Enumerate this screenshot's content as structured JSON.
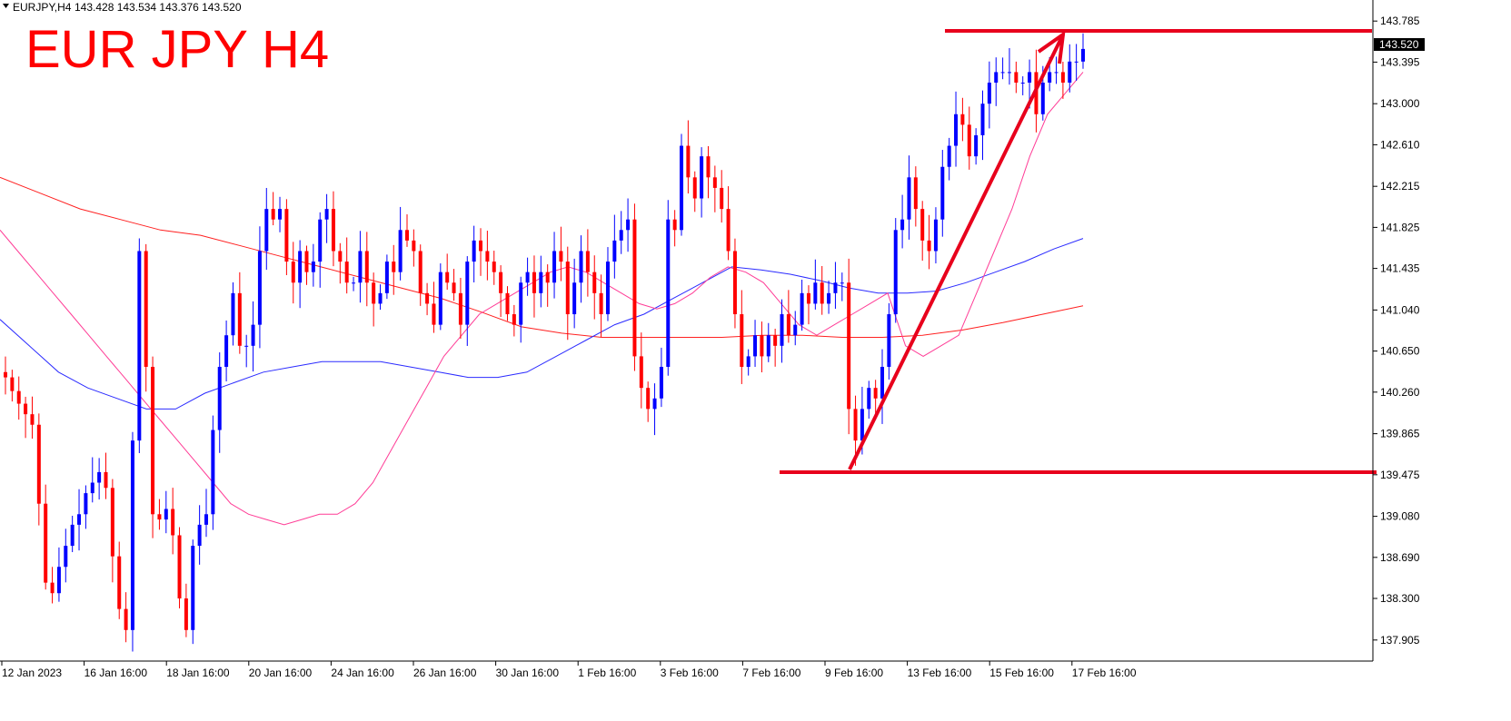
{
  "header": {
    "symbol": "EURJPY,H4",
    "ohlc": "143.428 143.534 143.376 143.520"
  },
  "chart_data": {
    "type": "candlestick",
    "title": "EUR JPY H4",
    "ylim": [
      137.705,
      143.985
    ],
    "y_ticks": [
      "143.785",
      "143.395",
      "143.000",
      "142.610",
      "142.215",
      "141.825",
      "141.435",
      "141.040",
      "140.650",
      "140.260",
      "139.865",
      "139.475",
      "139.080",
      "138.690",
      "138.300",
      "137.905"
    ],
    "x_labels": [
      "12 Jan 2023",
      "16 Jan 16:00",
      "18 Jan 16:00",
      "20 Jan 16:00",
      "24 Jan 16:00",
      "26 Jan 16:00",
      "30 Jan 16:00",
      "1 Feb 16:00",
      "3 Feb 16:00",
      "7 Feb 16:00",
      "9 Feb 16:00",
      "13 Feb 16:00",
      "15 Feb 16:00",
      "17 Feb 16:00"
    ],
    "last_price": "143.520",
    "colors": {
      "up": "#0000ff",
      "down": "#ff0000",
      "axis": "#000000",
      "annotation": "#e8001c",
      "ma_fast": "#ff3c96",
      "ma_mid": "#2b2bff",
      "ma_slow": "#ff2020"
    },
    "closes": [
      140.4,
      140.27,
      140.15,
      140.05,
      139.95,
      139.2,
      138.45,
      138.35,
      138.6,
      138.8,
      139.0,
      139.1,
      139.3,
      139.4,
      139.5,
      139.35,
      138.7,
      138.2,
      138.0,
      139.8,
      141.6,
      140.5,
      139.1,
      139.05,
      139.15,
      138.9,
      138.3,
      138.0,
      138.8,
      139.0,
      139.1,
      139.9,
      140.5,
      140.8,
      141.2,
      140.7,
      140.7,
      140.9,
      141.6,
      142.0,
      141.9,
      142.0,
      141.5,
      141.3,
      141.6,
      141.4,
      141.5,
      141.9,
      142.0,
      141.6,
      141.5,
      141.3,
      141.3,
      141.6,
      141.3,
      141.1,
      141.2,
      141.5,
      141.4,
      141.8,
      141.7,
      141.6,
      141.2,
      141.1,
      140.9,
      141.4,
      141.3,
      141.2,
      140.9,
      141.5,
      141.7,
      141.6,
      141.5,
      141.4,
      141.2,
      141.0,
      140.9,
      141.3,
      141.4,
      141.2,
      141.4,
      141.3,
      141.6,
      141.5,
      141.0,
      141.3,
      141.6,
      141.4,
      141.2,
      141.0,
      141.5,
      141.7,
      141.8,
      141.9,
      140.6,
      140.3,
      140.1,
      140.2,
      140.5,
      141.9,
      141.8,
      142.6,
      142.3,
      142.1,
      142.5,
      142.3,
      142.2,
      142.0,
      141.6,
      141.0,
      140.5,
      140.6,
      140.8,
      140.6,
      140.8,
      140.7,
      141.0,
      140.8,
      140.9,
      141.2,
      141.1,
      141.3,
      141.1,
      141.2,
      141.3,
      141.3,
      140.1,
      139.8,
      140.1,
      140.3,
      140.2,
      140.5,
      141.0,
      141.8,
      141.9,
      142.3,
      142.0,
      141.7,
      141.6,
      141.9,
      142.4,
      142.6,
      142.9,
      142.8,
      142.5,
      142.7,
      143.0,
      143.2,
      143.3,
      143.3,
      143.3,
      143.2,
      143.2,
      143.3,
      142.9,
      143.2,
      143.3,
      143.3,
      143.2,
      143.4,
      143.4,
      143.52
    ],
    "ma_fast": [
      141.8,
      141.6,
      141.4,
      141.2,
      141.0,
      140.8,
      140.6,
      140.4,
      140.2,
      140.0,
      139.8,
      139.6,
      139.4,
      139.2,
      139.1,
      139.05,
      139.0,
      139.05,
      139.1,
      139.1,
      139.2,
      139.4,
      139.7,
      140.0,
      140.3,
      140.6,
      140.8,
      141.0,
      141.1,
      141.2,
      141.3,
      141.4,
      141.45,
      141.4,
      141.3,
      141.2,
      141.1,
      141.05,
      141.1,
      141.2,
      141.35,
      141.45,
      141.4,
      141.3,
      141.1,
      140.9,
      140.8,
      140.9,
      141.0,
      141.1,
      141.2,
      140.7,
      140.6,
      140.7,
      140.8,
      141.2,
      141.6,
      142.0,
      142.5,
      142.9,
      143.1,
      143.3
    ],
    "ma_mid": [
      140.95,
      140.7,
      140.45,
      140.3,
      140.2,
      140.1,
      140.1,
      140.25,
      140.35,
      140.45,
      140.5,
      140.55,
      140.55,
      140.55,
      140.5,
      140.45,
      140.4,
      140.4,
      140.45,
      140.6,
      140.75,
      140.9,
      141.0,
      141.15,
      141.3,
      141.45,
      141.42,
      141.38,
      141.32,
      141.25,
      141.2,
      141.2,
      141.22,
      141.3,
      141.4,
      141.5,
      141.62,
      141.72
    ],
    "ma_slow": [
      142.3,
      142.15,
      142.0,
      141.9,
      141.8,
      141.75,
      141.65,
      141.55,
      141.45,
      141.35,
      141.25,
      141.15,
      141.02,
      140.88,
      140.82,
      140.78,
      140.78,
      140.78,
      140.78,
      140.8,
      140.8,
      140.78,
      140.78,
      140.8,
      140.85,
      140.92,
      141.0,
      141.08
    ]
  }
}
